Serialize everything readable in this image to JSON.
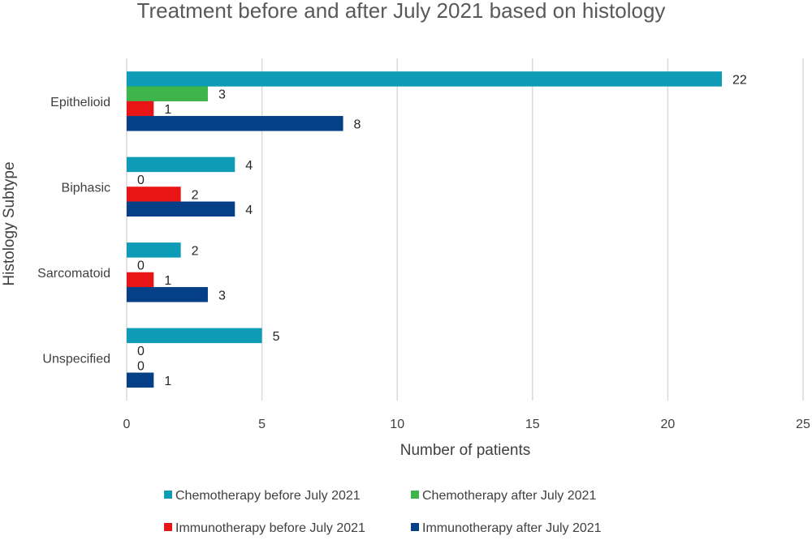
{
  "chart_data": {
    "type": "bar",
    "orientation": "horizontal",
    "title": "Treatment before and after July 2021 based on histology",
    "xlabel": "Number of patients",
    "ylabel": "Histology Subtype",
    "xlim": [
      0,
      25
    ],
    "xticks": [
      0,
      5,
      10,
      15,
      20,
      25
    ],
    "grid": "vertical",
    "legend_position": "bottom",
    "categories": [
      "Epithelioid",
      "Biphasic",
      "Sarcomatoid",
      "Unspecified"
    ],
    "series": [
      {
        "name": "Chemotherapy before July 2021",
        "color": "#0d9bb5",
        "values": [
          22,
          4,
          2,
          5
        ]
      },
      {
        "name": "Chemotherapy after July 2021",
        "color": "#3db54a",
        "values": [
          3,
          0,
          0,
          0
        ]
      },
      {
        "name": "Immunotherapy before July 2021",
        "color": "#e81416",
        "values": [
          1,
          2,
          1,
          0
        ]
      },
      {
        "name": "Immunotherapy after July 2021",
        "color": "#053f85",
        "values": [
          8,
          4,
          3,
          1
        ]
      }
    ]
  }
}
